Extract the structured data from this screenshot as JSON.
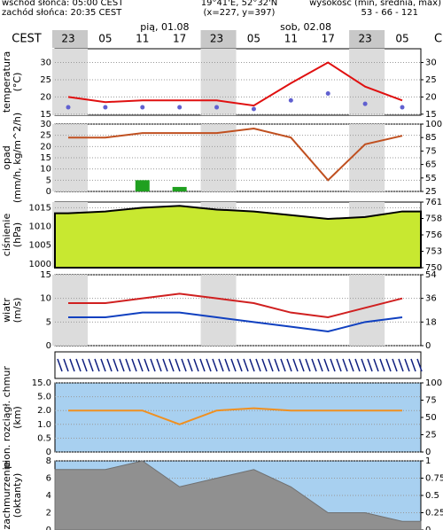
{
  "header": {
    "sunrise": "wschód słońca: 05:00 CEST",
    "sunset": "zachód słońca: 20:35 CEST",
    "coords": "19°41'E, 52°32'N",
    "grid_point": "(x=227, y=397)",
    "elevation_title": "wysokość (min, średnia, max)",
    "elevation": "53 - 66 - 121",
    "timezone_left": "CEST",
    "timezone_right": "C",
    "dates": [
      "pią, 01.08",
      "sob, 02.08"
    ]
  },
  "chart_data": [
    {
      "type": "line",
      "ylabel": "temperatura",
      "yunit": "(°C)",
      "categories": [
        "23",
        "05",
        "11",
        "17",
        "23",
        "05",
        "11",
        "17",
        "23",
        "05"
      ],
      "ylim": [
        14.7,
        34
      ],
      "yticks": [
        15,
        20,
        25,
        30
      ],
      "y2lim": [
        14.7,
        34
      ],
      "y2ticks": [
        15,
        20,
        25,
        30
      ],
      "series": [
        {
          "name": "temperatura",
          "type": "line",
          "color": "#e01010",
          "values": [
            20,
            18.5,
            19,
            19,
            19,
            17.5,
            24,
            30,
            23,
            19
          ]
        },
        {
          "name": "punkt rosy",
          "type": "dots",
          "color": "#6060d0",
          "values": [
            17,
            17,
            17,
            17,
            17,
            16.5,
            19,
            21,
            18,
            17
          ]
        }
      ]
    },
    {
      "type": "line",
      "ylabel": "opad",
      "yunit": "(mm/h, kg/m^2/h)",
      "ylim": [
        0,
        30
      ],
      "yticks": [
        0,
        5,
        10,
        15,
        20,
        25,
        30
      ],
      "y2scale": "ticks",
      "y2ticks": [
        25,
        55,
        65,
        75,
        85,
        100
      ],
      "series": [
        {
          "name": "opad",
          "type": "bar",
          "color": "#20a020",
          "values": [
            0,
            0,
            5,
            2,
            0,
            0,
            0,
            0,
            0,
            0
          ]
        },
        {
          "name": "wilgotność",
          "type": "line",
          "axis": "y2",
          "color": "#c05020",
          "values": [
            85,
            85,
            90,
            90,
            90,
            95,
            85,
            50,
            80,
            87
          ]
        }
      ]
    },
    {
      "type": "line",
      "ylabel": "ciśnienie",
      "yunit": "(hPa)",
      "ylim": [
        999,
        1016.5
      ],
      "yticks": [
        1000,
        1005,
        1010,
        1015
      ],
      "y2scale": "ticks",
      "y2ticks": [
        750,
        753,
        756,
        758,
        761
      ],
      "series": [
        {
          "name": "ciśnienie",
          "type": "area",
          "color": "#000000",
          "values": [
            1013.5,
            1014,
            1015,
            1015.5,
            1014.5,
            1014,
            1013,
            1012,
            1012.5,
            1014
          ]
        }
      ]
    },
    {
      "type": "line",
      "ylabel": "wiatr",
      "yunit": "(m/s)",
      "ylim": [
        0,
        15
      ],
      "yticks": [
        0,
        5,
        10,
        15
      ],
      "y2lim": [
        0,
        54
      ],
      "y2ticks": [
        0,
        18,
        36,
        54
      ],
      "series": [
        {
          "name": "wiatr",
          "type": "line",
          "color": "#1040c0",
          "values": [
            6,
            6,
            7,
            7,
            6,
            5,
            4,
            3,
            5,
            6
          ]
        },
        {
          "name": "porywy",
          "type": "line",
          "color": "#d02020",
          "values": [
            9,
            9,
            10,
            11,
            10,
            9,
            7,
            6,
            8,
            10
          ]
        }
      ]
    },
    {
      "type": "line",
      "ylabel": "pion. rozciągł. chmur",
      "yunit": "(km)",
      "yscale": "ticks",
      "yticks": [
        0,
        0.5,
        {
          "value": 1,
          "label": "1.0"
        },
        {
          "value": 2,
          "label": "2.0"
        },
        {
          "value": 5,
          "label": "5.0"
        },
        {
          "value": 15,
          "label": "15.0"
        }
      ],
      "y2scale": "ticks",
      "y2ticks": [
        0,
        25,
        50,
        75,
        100
      ],
      "series": [
        {
          "name": "podstawa chmur",
          "type": "line",
          "color": "#f09020",
          "values": [
            2,
            2,
            2,
            1,
            2,
            2.5,
            2,
            2,
            2,
            2
          ]
        }
      ]
    },
    {
      "type": "line",
      "ylabel": "zachmurzenie",
      "yunit": "(oktanty)",
      "ylim": [
        0,
        8
      ],
      "yticks": [
        0,
        2,
        4,
        6,
        8
      ],
      "y2lim": [
        0,
        1
      ],
      "y2ticks": [
        0,
        0.25,
        0.5,
        0.75,
        1
      ],
      "series": [
        {
          "name": "zachmurzenie",
          "type": "area",
          "color": "#707070",
          "values": [
            7,
            7,
            8,
            5,
            6,
            7,
            5,
            2,
            2,
            1
          ]
        }
      ]
    }
  ]
}
